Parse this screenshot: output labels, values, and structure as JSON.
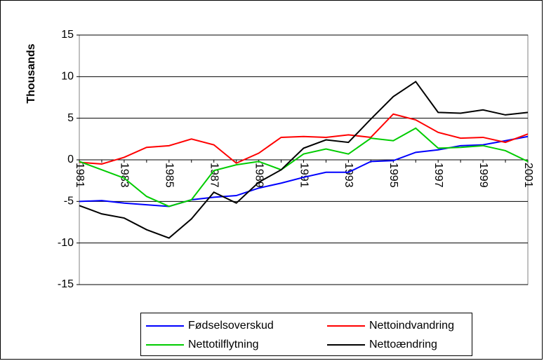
{
  "chart_data": {
    "type": "line",
    "y_label": "Thousands",
    "categories": [
      "1981",
      null,
      "1983",
      null,
      "1985",
      null,
      "1987",
      null,
      "1989",
      null,
      "1991",
      null,
      "1993",
      null,
      "1995",
      null,
      "1997",
      null,
      "1999",
      null,
      "2001"
    ],
    "series": [
      {
        "name": "Fødselsoverskud",
        "color": "#0000ff",
        "values": [
          -5.0,
          -4.9,
          -5.2,
          -5.4,
          -5.6,
          -4.8,
          -4.5,
          -4.3,
          -3.4,
          -2.8,
          -2.1,
          -1.5,
          -1.5,
          -0.2,
          -0.1,
          0.9,
          1.2,
          1.7,
          1.8,
          2.3,
          2.8
        ]
      },
      {
        "name": "Nettoindvandring",
        "color": "#ff0000",
        "values": [
          -0.3,
          -0.5,
          0.3,
          1.5,
          1.7,
          2.5,
          1.8,
          -0.4,
          0.8,
          2.7,
          2.8,
          2.7,
          3.0,
          2.7,
          5.5,
          4.8,
          3.3,
          2.6,
          2.7,
          2.1,
          3.1
        ]
      },
      {
        "name": "Nettotilflytning",
        "color": "#00cc00",
        "values": [
          -0.2,
          -1.2,
          -2.2,
          -4.4,
          -5.6,
          -4.8,
          -1.3,
          -0.6,
          -0.2,
          -1.2,
          0.7,
          1.3,
          0.7,
          2.6,
          2.3,
          3.8,
          1.4,
          1.5,
          1.7,
          1.1,
          -0.2
        ]
      },
      {
        "name": "Nettoændring",
        "color": "#000000",
        "values": [
          -5.5,
          -6.5,
          -7.0,
          -8.4,
          -9.4,
          -7.1,
          -3.9,
          -5.2,
          -2.7,
          -1.2,
          1.4,
          2.4,
          2.1,
          4.9,
          7.6,
          9.4,
          5.7,
          5.6,
          6.0,
          5.4,
          5.7
        ]
      }
    ],
    "ylim": [
      -15,
      15
    ],
    "yticks": [
      -15,
      -10,
      -5,
      0,
      5,
      10,
      15
    ],
    "grid": true,
    "legend": "bottom"
  }
}
